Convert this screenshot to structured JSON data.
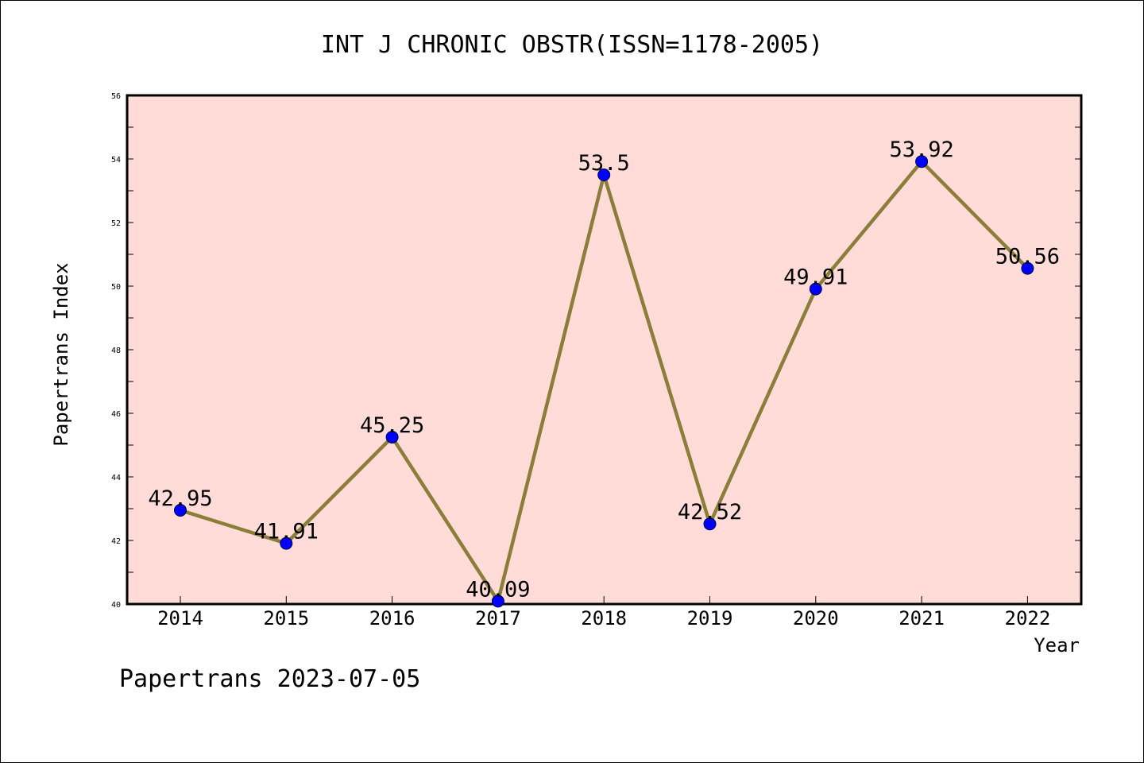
{
  "chart_data": {
    "type": "line",
    "title": "INT J CHRONIC OBSTR(ISSN=1178-2005)",
    "xlabel": "Year",
    "ylabel": "Papertrans Index",
    "categories": [
      "2014",
      "2015",
      "2016",
      "2017",
      "2018",
      "2019",
      "2020",
      "2021",
      "2022"
    ],
    "series": [
      {
        "values": [
          42.95,
          41.91,
          45.25,
          40.09,
          53.5,
          42.52,
          49.91,
          53.92,
          50.56
        ],
        "labels": [
          "42.95",
          "41.91",
          "45.25",
          "40.09",
          "53.5",
          "42.52",
          "49.91",
          "53.92",
          "50.56"
        ]
      }
    ],
    "ylim": [
      40,
      56
    ],
    "yticks": [
      "40",
      "42",
      "44",
      "46",
      "48",
      "50",
      "52",
      "54",
      "56"
    ],
    "grid": false,
    "legend": "none",
    "colors": {
      "plot_background": "#ffdcd8",
      "line": "#8b7d3a",
      "marker": "#0000ff"
    }
  },
  "footer": "Papertrans 2023-07-05"
}
